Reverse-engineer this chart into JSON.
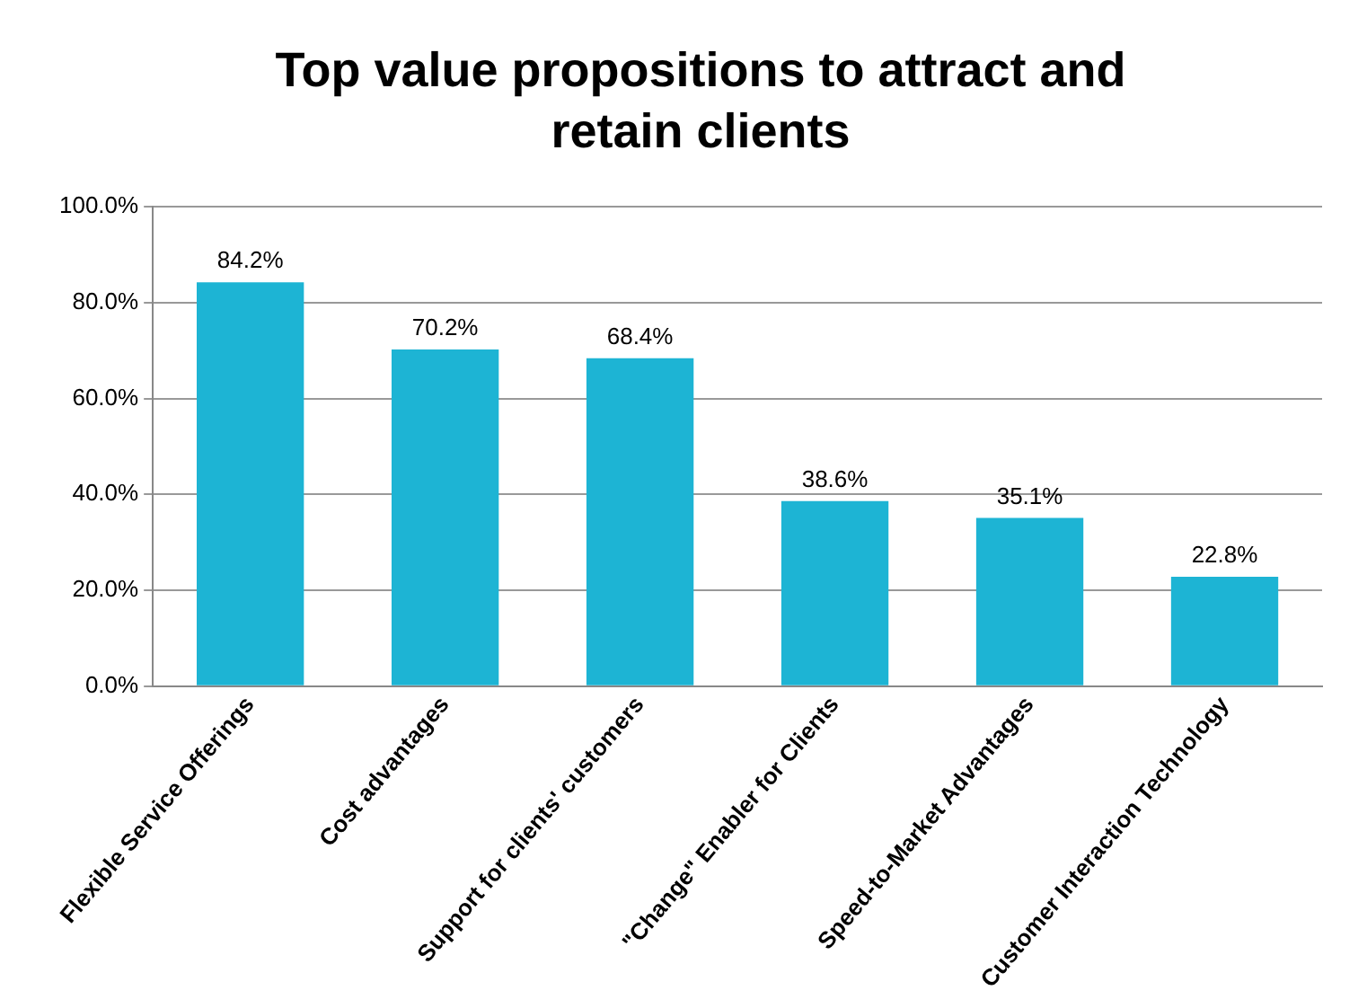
{
  "chart_data": {
    "type": "bar",
    "title": "Top value propositions to attract and retain clients",
    "categories": [
      "Flexible Service Offerings",
      "Cost advantages",
      "Support for clients' customers",
      "\"Change\" Enabler for Clients",
      "Speed-to-Market Advantages",
      "Customer Interaction Technology"
    ],
    "values": [
      84.2,
      70.2,
      68.4,
      38.6,
      35.1,
      22.8
    ],
    "value_labels": [
      "84.2%",
      "70.2%",
      "68.4%",
      "38.6%",
      "35.1%",
      "22.8%"
    ],
    "color": "#1db4d4",
    "ylim": [
      0,
      100
    ],
    "yticks": [
      {
        "value": 0,
        "label": "0.0%"
      },
      {
        "value": 20,
        "label": "20.0%"
      },
      {
        "value": 40,
        "label": "40.0%"
      },
      {
        "value": 60,
        "label": "60.0%"
      },
      {
        "value": 80,
        "label": "80.0%"
      },
      {
        "value": 100,
        "label": "100.0%"
      }
    ],
    "grid": "y",
    "legend": false
  }
}
